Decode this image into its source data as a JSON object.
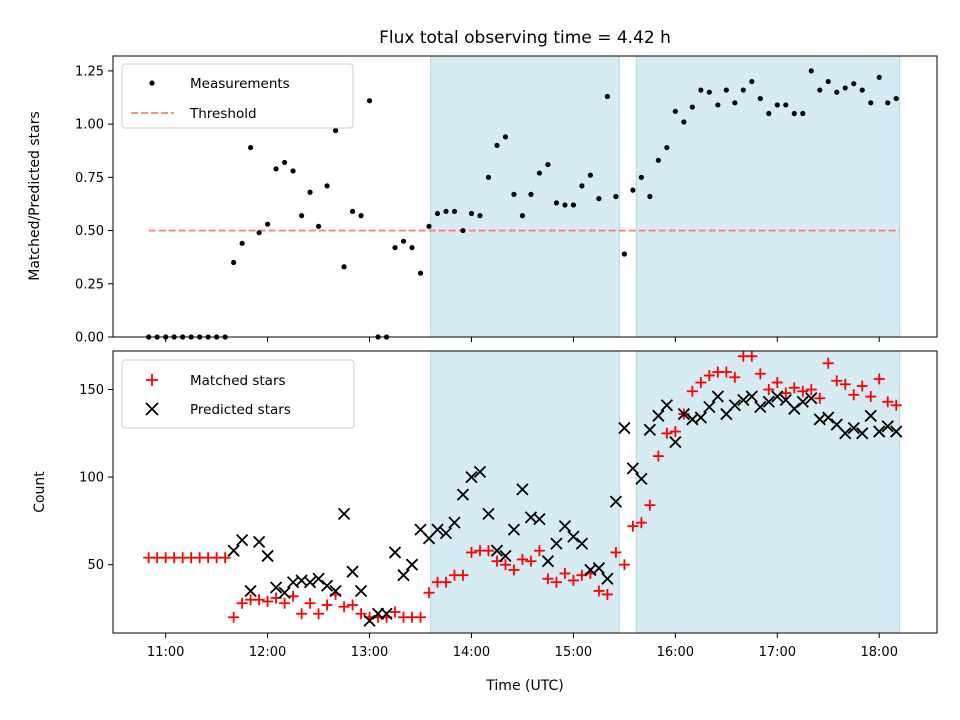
{
  "chart_data": [
    {
      "type": "scatter",
      "title": "Flux total observing time = 4.42 h",
      "xlabel": "",
      "ylabel": "Matched/Predicted stars",
      "ylim": [
        0,
        1.32
      ],
      "yticks": [
        0.0,
        0.25,
        0.5,
        0.75,
        1.0,
        1.25
      ],
      "ytick_labels": [
        "0.00",
        "0.25",
        "0.50",
        "0.75",
        "1.00",
        "1.25"
      ],
      "legend": {
        "position": "upper-left",
        "entries": [
          "Measurements",
          "Threshold"
        ]
      },
      "threshold": {
        "name": "Threshold",
        "value": 0.5,
        "x_start": "10:50",
        "x_end": "18:12",
        "color": "#ff7f7f"
      },
      "shaded_spans": [
        [
          "13:36",
          "15:27"
        ],
        [
          "15:37",
          "18:12"
        ]
      ],
      "series": [
        {
          "name": "Measurements",
          "color": "#000000",
          "x": [
            "10:50",
            "10:55",
            "11:00",
            "11:05",
            "11:10",
            "11:15",
            "11:20",
            "11:25",
            "11:30",
            "11:35",
            "11:40",
            "11:45",
            "11:50",
            "11:55",
            "12:00",
            "12:05",
            "12:10",
            "12:15",
            "12:20",
            "12:25",
            "12:30",
            "12:35",
            "12:40",
            "12:45",
            "12:50",
            "12:55",
            "13:00",
            "13:05",
            "13:10",
            "13:15",
            "13:20",
            "13:25",
            "13:30",
            "13:35",
            "13:40",
            "13:45",
            "13:50",
            "13:55",
            "14:00",
            "14:05",
            "14:10",
            "14:15",
            "14:20",
            "14:25",
            "14:30",
            "14:35",
            "14:40",
            "14:45",
            "14:50",
            "14:55",
            "15:00",
            "15:05",
            "15:10",
            "15:15",
            "15:20",
            "15:25",
            "15:30",
            "15:35",
            "15:40",
            "15:45",
            "15:50",
            "15:55",
            "16:00",
            "16:05",
            "16:10",
            "16:15",
            "16:20",
            "16:25",
            "16:30",
            "16:35",
            "16:40",
            "16:45",
            "16:50",
            "16:55",
            "17:00",
            "17:05",
            "17:10",
            "17:15",
            "17:20",
            "17:25",
            "17:30",
            "17:35",
            "17:40",
            "17:45",
            "17:50",
            "17:55",
            "18:00",
            "18:05",
            "18:10"
          ],
          "y": [
            0.0,
            0.0,
            0.0,
            0.0,
            0.0,
            0.0,
            0.0,
            0.0,
            0.0,
            0.0,
            0.35,
            0.44,
            0.89,
            0.49,
            0.53,
            0.79,
            0.82,
            0.78,
            0.57,
            0.68,
            0.52,
            0.71,
            0.97,
            0.33,
            0.59,
            0.57,
            1.11,
            0.0,
            0.0,
            0.42,
            0.45,
            0.42,
            0.3,
            0.52,
            0.58,
            0.59,
            0.59,
            0.5,
            0.58,
            0.57,
            0.75,
            0.9,
            0.94,
            0.67,
            0.57,
            0.67,
            0.77,
            0.81,
            0.63,
            0.62,
            0.62,
            0.71,
            0.76,
            0.65,
            1.13,
            0.66,
            0.39,
            0.69,
            0.75,
            0.66,
            0.83,
            0.89,
            1.06,
            1.01,
            1.08,
            1.16,
            1.15,
            1.09,
            1.16,
            1.1,
            1.16,
            1.2,
            1.12,
            1.05,
            1.09,
            1.09,
            1.05,
            1.05,
            1.25,
            1.16,
            1.2,
            1.15,
            1.17,
            1.19,
            1.16,
            1.1,
            1.22,
            1.1,
            1.12
          ]
        }
      ]
    },
    {
      "type": "scatter",
      "title": "",
      "xlabel": "Time (UTC)",
      "ylabel": "Count",
      "xlim": [
        "10:29",
        "18:34"
      ],
      "xticks": [
        "11:00",
        "12:00",
        "13:00",
        "14:00",
        "15:00",
        "16:00",
        "17:00",
        "18:00"
      ],
      "ylim": [
        11,
        172
      ],
      "yticks": [
        50,
        100,
        150
      ],
      "ytick_labels": [
        "50",
        "100",
        "150"
      ],
      "legend": {
        "position": "upper-left",
        "entries": [
          "Matched stars",
          "Predicted stars"
        ]
      },
      "shaded_spans": [
        [
          "13:36",
          "15:27"
        ],
        [
          "15:37",
          "18:12"
        ]
      ],
      "series": [
        {
          "name": "Matched stars",
          "color": "#ff0000",
          "marker": "+",
          "x": [
            "10:50",
            "10:55",
            "11:00",
            "11:05",
            "11:10",
            "11:15",
            "11:20",
            "11:25",
            "11:30",
            "11:35",
            "11:40",
            "11:45",
            "11:50",
            "11:55",
            "12:00",
            "12:05",
            "12:10",
            "12:15",
            "12:20",
            "12:25",
            "12:30",
            "12:35",
            "12:40",
            "12:45",
            "12:50",
            "12:55",
            "13:00",
            "13:05",
            "13:10",
            "13:15",
            "13:20",
            "13:25",
            "13:30",
            "13:35",
            "13:40",
            "13:45",
            "13:50",
            "13:55",
            "14:00",
            "14:05",
            "14:10",
            "14:15",
            "14:20",
            "14:25",
            "14:30",
            "14:35",
            "14:40",
            "14:45",
            "14:50",
            "14:55",
            "15:00",
            "15:05",
            "15:10",
            "15:15",
            "15:20",
            "15:25",
            "15:30",
            "15:35",
            "15:40",
            "15:45",
            "15:50",
            "15:55",
            "16:00",
            "16:05",
            "16:10",
            "16:15",
            "16:20",
            "16:25",
            "16:30",
            "16:35",
            "16:40",
            "16:45",
            "16:50",
            "16:55",
            "17:00",
            "17:05",
            "17:10",
            "17:15",
            "17:20",
            "17:25",
            "17:30",
            "17:35",
            "17:40",
            "17:45",
            "17:50",
            "17:55",
            "18:00",
            "18:05",
            "18:10"
          ],
          "y": [
            54,
            54,
            54,
            54,
            54,
            54,
            54,
            54,
            54,
            54,
            20,
            28,
            30,
            30,
            29,
            31,
            28,
            32,
            22,
            28,
            22,
            27,
            33,
            26,
            27,
            22,
            20,
            20,
            20,
            23,
            20,
            20,
            20,
            34,
            40,
            40,
            44,
            44,
            57,
            58,
            58,
            52,
            50,
            47,
            53,
            52,
            58,
            42,
            40,
            45,
            41,
            44,
            45,
            35,
            33,
            57,
            50,
            72,
            74,
            84,
            112,
            125,
            126,
            136,
            149,
            154,
            158,
            160,
            160,
            157,
            169,
            169,
            159,
            150,
            154,
            148,
            151,
            149,
            150,
            145,
            165,
            155,
            153,
            147,
            152,
            146,
            156,
            143,
            141
          ]
        },
        {
          "name": "Predicted stars",
          "color": "#000000",
          "marker": "x",
          "x": [
            "11:40",
            "11:45",
            "11:50",
            "11:55",
            "12:00",
            "12:05",
            "12:10",
            "12:15",
            "12:20",
            "12:25",
            "12:30",
            "12:35",
            "12:40",
            "12:45",
            "12:50",
            "12:55",
            "13:00",
            "13:05",
            "13:10",
            "13:15",
            "13:20",
            "13:25",
            "13:30",
            "13:35",
            "13:40",
            "13:45",
            "13:50",
            "13:55",
            "14:00",
            "14:05",
            "14:10",
            "14:15",
            "14:20",
            "14:25",
            "14:30",
            "14:35",
            "14:40",
            "14:45",
            "14:50",
            "14:55",
            "15:00",
            "15:05",
            "15:10",
            "15:15",
            "15:20",
            "15:25",
            "15:30",
            "15:35",
            "15:40",
            "15:45",
            "15:50",
            "15:55",
            "16:00",
            "16:05",
            "16:10",
            "16:15",
            "16:20",
            "16:25",
            "16:30",
            "16:35",
            "16:40",
            "16:45",
            "16:50",
            "16:55",
            "17:00",
            "17:05",
            "17:10",
            "17:15",
            "17:20",
            "17:25",
            "17:30",
            "17:35",
            "17:40",
            "17:45",
            "17:50",
            "17:55",
            "18:00",
            "18:05",
            "18:10"
          ],
          "y": [
            58,
            64,
            35,
            63,
            55,
            37,
            34,
            40,
            41,
            40,
            42,
            38,
            35,
            79,
            46,
            35,
            18,
            22,
            22,
            57,
            44,
            50,
            70,
            65,
            70,
            68,
            74,
            90,
            100,
            103,
            79,
            58,
            55,
            70,
            93,
            77,
            76,
            52,
            62,
            72,
            66,
            62,
            47,
            48,
            42,
            86,
            128,
            105,
            99,
            127,
            135,
            141,
            120,
            136,
            133,
            134,
            140,
            146,
            136,
            141,
            144,
            146,
            140,
            143,
            146,
            144,
            139,
            143,
            145,
            133,
            134,
            130,
            125,
            128,
            125,
            135,
            126,
            129,
            126
          ]
        }
      ]
    }
  ]
}
